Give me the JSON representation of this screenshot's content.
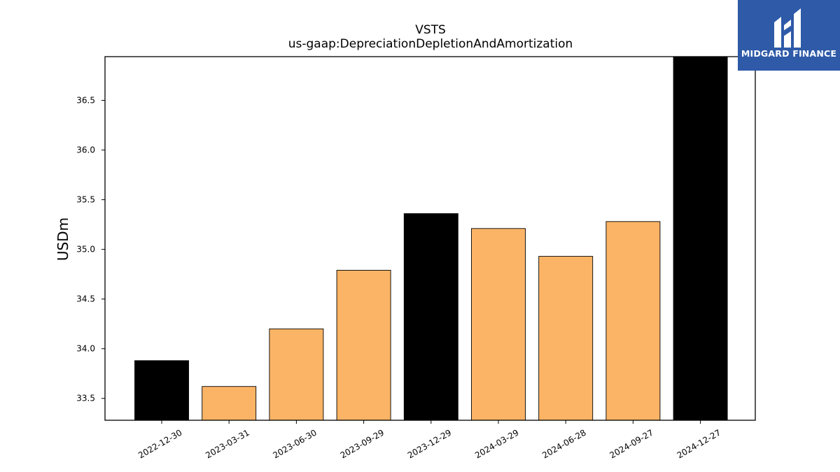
{
  "chart_data": {
    "type": "bar",
    "title": "VSTS",
    "subtitle": "us-gaap:DepreciationDepletionAndAmortization",
    "xlabel": "",
    "ylabel": "USDm",
    "categories": [
      "2022-12-30",
      "2023-03-31",
      "2023-06-30",
      "2023-09-29",
      "2023-12-29",
      "2024-03-29",
      "2024-06-28",
      "2024-09-27",
      "2024-12-27"
    ],
    "values": [
      33.88,
      33.62,
      34.2,
      34.79,
      35.36,
      35.21,
      34.93,
      35.28,
      36.94
    ],
    "highlight": [
      true,
      false,
      false,
      false,
      true,
      false,
      false,
      false,
      true
    ],
    "ylim": [
      33.28,
      36.94
    ],
    "yticks": [
      "33.5",
      "34.0",
      "34.5",
      "35.0",
      "35.5",
      "36.0",
      "36.5"
    ],
    "colors": {
      "highlight": "#000000",
      "default": "#fbb466",
      "edge": "#000000"
    },
    "grid": false
  },
  "logo": {
    "text": "MIDGARD FINANCE"
  }
}
